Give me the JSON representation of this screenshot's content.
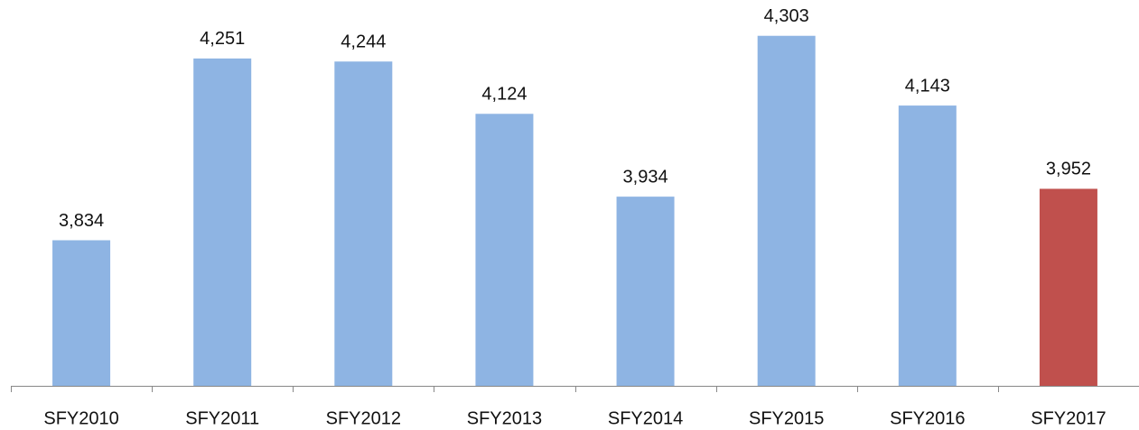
{
  "chart_data": {
    "type": "bar",
    "categories": [
      "SFY2010",
      "SFY2011",
      "SFY2012",
      "SFY2013",
      "SFY2014",
      "SFY2015",
      "SFY2016",
      "SFY2017"
    ],
    "values": [
      3834,
      4251,
      4244,
      4124,
      3934,
      4303,
      4143,
      3952
    ],
    "value_labels": [
      "3,834",
      "4,251",
      "4,244",
      "4,124",
      "3,934",
      "4,303",
      "4,143",
      "3,952"
    ],
    "colors": [
      "#8eb4e3",
      "#8eb4e3",
      "#8eb4e3",
      "#8eb4e3",
      "#8eb4e3",
      "#8eb4e3",
      "#8eb4e3",
      "#c0504d"
    ],
    "ylim": [
      3500,
      4350
    ]
  }
}
